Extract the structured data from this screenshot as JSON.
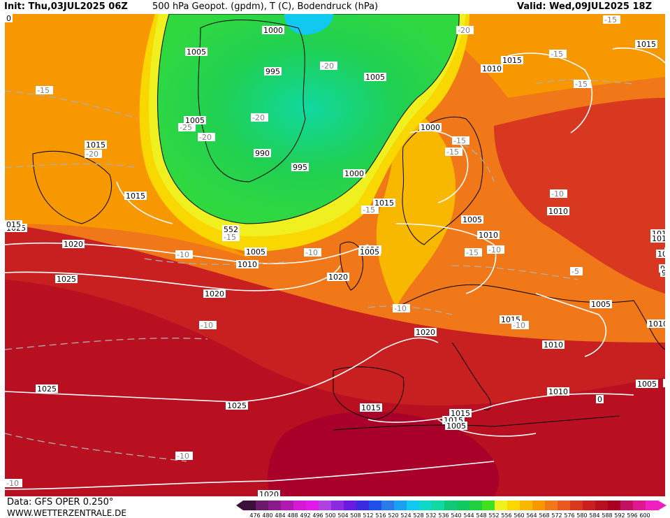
{
  "header": {
    "init_label": "Init: Thu,03JUL2025 06Z",
    "title": "500 hPa Geopot. (gpdm), T (C), Bodendruck (hPa)",
    "valid_label": "Valid: Wed,09JUL2025 18Z"
  },
  "footer": {
    "data_source": "Data: GFS OPER 0.250°",
    "website": "WWW.WETTERZENTRALE.DE"
  },
  "colorbar": {
    "ticks": [
      "476",
      "480",
      "484",
      "488",
      "492",
      "496",
      "500",
      "504",
      "508",
      "512",
      "516",
      "520",
      "524",
      "528",
      "532",
      "536",
      "540",
      "544",
      "548",
      "552",
      "556",
      "560",
      "564",
      "568",
      "572",
      "576",
      "580",
      "584",
      "588",
      "592",
      "596",
      "600"
    ],
    "colors": [
      "#3a0f3a",
      "#6b1a6b",
      "#8a1a8a",
      "#b01ab0",
      "#d21ad2",
      "#e01ae8",
      "#b040e0",
      "#8a2be2",
      "#6a1ae0",
      "#3a2ae0",
      "#2050e8",
      "#2a7ae8",
      "#1aa0f0",
      "#10c8f0",
      "#10d8c8",
      "#10d8a0",
      "#10c878",
      "#10c860",
      "#20d040",
      "#40e020",
      "#f0f020",
      "#f8d800",
      "#f8b800",
      "#f89800",
      "#f07818",
      "#e85820",
      "#d83820",
      "#c82020",
      "#b81020",
      "#a80020",
      "#c01060",
      "#e01890",
      "#f020c0"
    ]
  },
  "map": {
    "pressure_labels": [
      "1000",
      "1005",
      "995",
      "1005",
      "1015",
      "1010",
      "1015",
      "1000",
      "1005",
      "990",
      "995",
      "1000",
      "1010",
      "1020",
      "1015",
      "1015",
      "1005",
      "1010",
      "1010",
      "1010",
      "1005",
      "1015",
      "1020",
      "1010",
      "1020",
      "1025",
      "1005",
      "1010",
      "1015",
      "1005",
      "1005",
      "1025",
      "1020",
      "1020",
      "1025",
      "1015",
      "1015",
      "1010",
      "1010",
      "1010",
      "1005",
      "1020",
      "1025",
      "1015",
      "990"
    ],
    "temperature_labels": [
      "-15",
      "-20",
      "-25",
      "-20",
      "-20",
      "-20",
      "-20",
      "-15",
      "-15",
      "-15",
      "-15",
      "-20",
      "-15",
      "-15",
      "-15",
      "-10",
      "-10",
      "-10",
      "-10",
      "-10",
      "-5",
      "-10",
      "-10",
      "-10",
      "-10",
      "-15",
      "-20",
      "-15"
    ],
    "height_labels": [
      "552"
    ],
    "misc_labels": [
      "015",
      "10",
      "0",
      "15",
      "99",
      "0"
    ]
  }
}
